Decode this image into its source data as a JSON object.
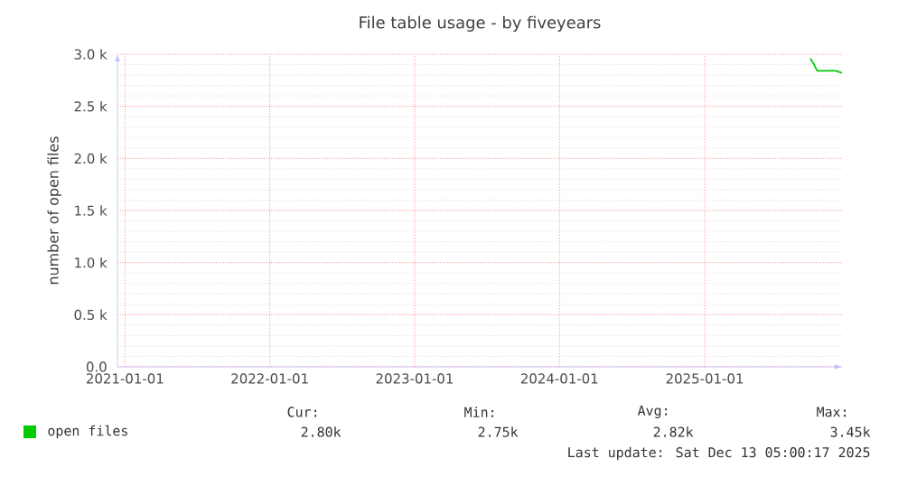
{
  "chart_data": {
    "type": "line",
    "title": "File table usage - by fiveyears",
    "ylabel": "number of open files",
    "series": [
      {
        "name": "open files",
        "color": "#00cc00",
        "x": [
          "2025-09-24",
          "2025-10-04",
          "2025-10-06",
          "2025-10-12",
          "2025-11-27",
          "2025-12-13"
        ],
        "values": [
          2960,
          2900,
          2880,
          2840,
          2840,
          2820
        ]
      }
    ],
    "xlim": [
      "2020-12-13",
      "2025-12-13"
    ],
    "xticks": [
      "2021-01-01",
      "2022-01-01",
      "2023-01-01",
      "2024-01-01",
      "2025-01-01"
    ],
    "ylim": [
      0,
      3000
    ],
    "yticks": [
      {
        "value": 0,
        "label": "0.0"
      },
      {
        "value": 500,
        "label": "0.5 k"
      },
      {
        "value": 1000,
        "label": "1.0 k"
      },
      {
        "value": 1500,
        "label": "1.5 k"
      },
      {
        "value": 2000,
        "label": "2.0 k"
      },
      {
        "value": 2500,
        "label": "2.5 k"
      },
      {
        "value": 3000,
        "label": "3.0 k"
      }
    ],
    "grid": true,
    "legend": "bottom",
    "marker": "none",
    "line_style": "solid",
    "annotations": [
      "Cur:",
      "Min:",
      "Avg:",
      "Max:",
      "2.80k",
      "2.75k",
      "2.82k",
      "3.45k",
      "Last update: Sat Dec 13 05:00:17 2025"
    ]
  }
}
